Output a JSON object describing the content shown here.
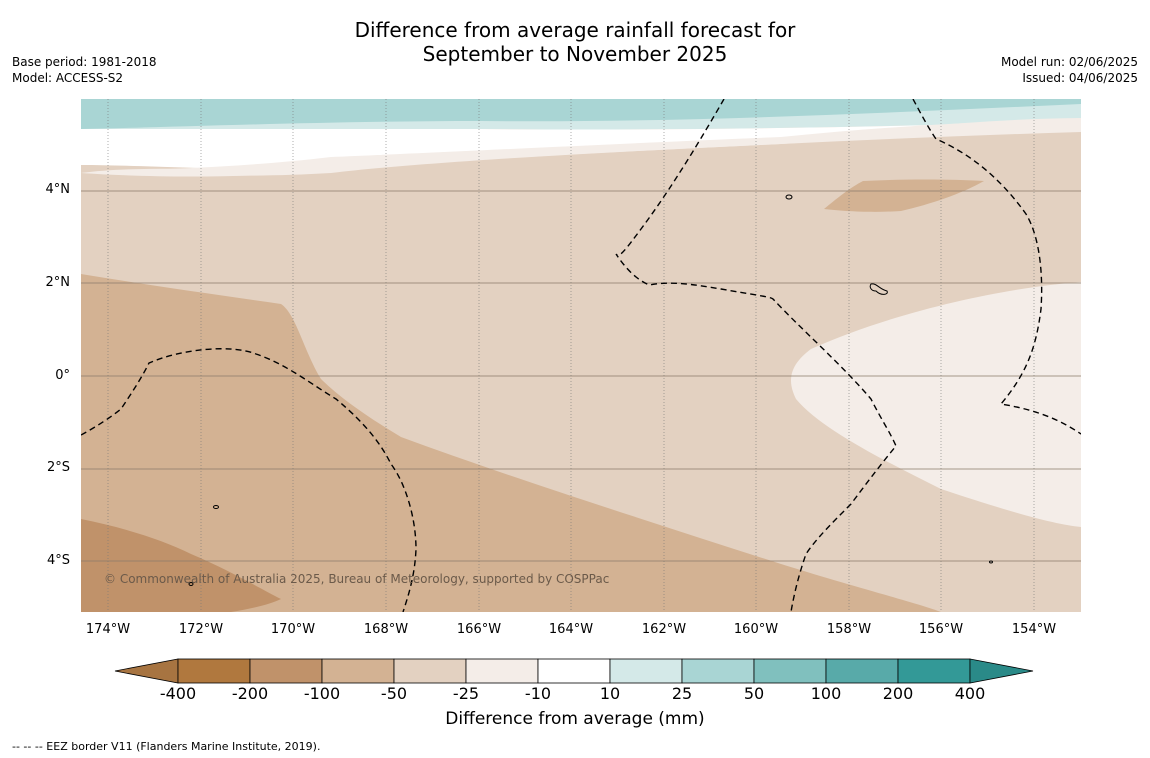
{
  "header": {
    "title_line1": "Difference from average rainfall forecast for",
    "title_line2": "September to November 2025",
    "base_period": "Base period: 1981-2018",
    "model": "Model: ACCESS-S2",
    "model_run": "Model run: 02/06/2025",
    "issued": "Issued: 04/06/2025"
  },
  "map": {
    "lat_labels": [
      "4°N",
      "2°N",
      "0°",
      "2°S",
      "4°S"
    ],
    "lon_labels": [
      "174°W",
      "172°W",
      "170°W",
      "168°W",
      "166°W",
      "164°W",
      "162°W",
      "160°W",
      "158°W",
      "156°W",
      "154°W"
    ],
    "credit": "© Commonwealth of Australia 2025, Bureau of Meteorology, supported by COSPPac"
  },
  "colorbar": {
    "ticks": [
      "-400",
      "-200",
      "-100",
      "-50",
      "-25",
      "-10",
      "10",
      "25",
      "50",
      "100",
      "200",
      "400"
    ],
    "colors": [
      "#a77441",
      "#b0783e",
      "#c0926a",
      "#d3b293",
      "#e3d1c1",
      "#f4ede8",
      "#ffffff",
      "#d4e9e8",
      "#a9d5d4",
      "#80c0be",
      "#58aaa9",
      "#339997",
      "#2a8a88"
    ],
    "label": "Difference from average (mm)"
  },
  "footer": {
    "eez_note": "--  --  -- EEZ border V11 (Flanders Marine Institute, 2019)."
  }
}
